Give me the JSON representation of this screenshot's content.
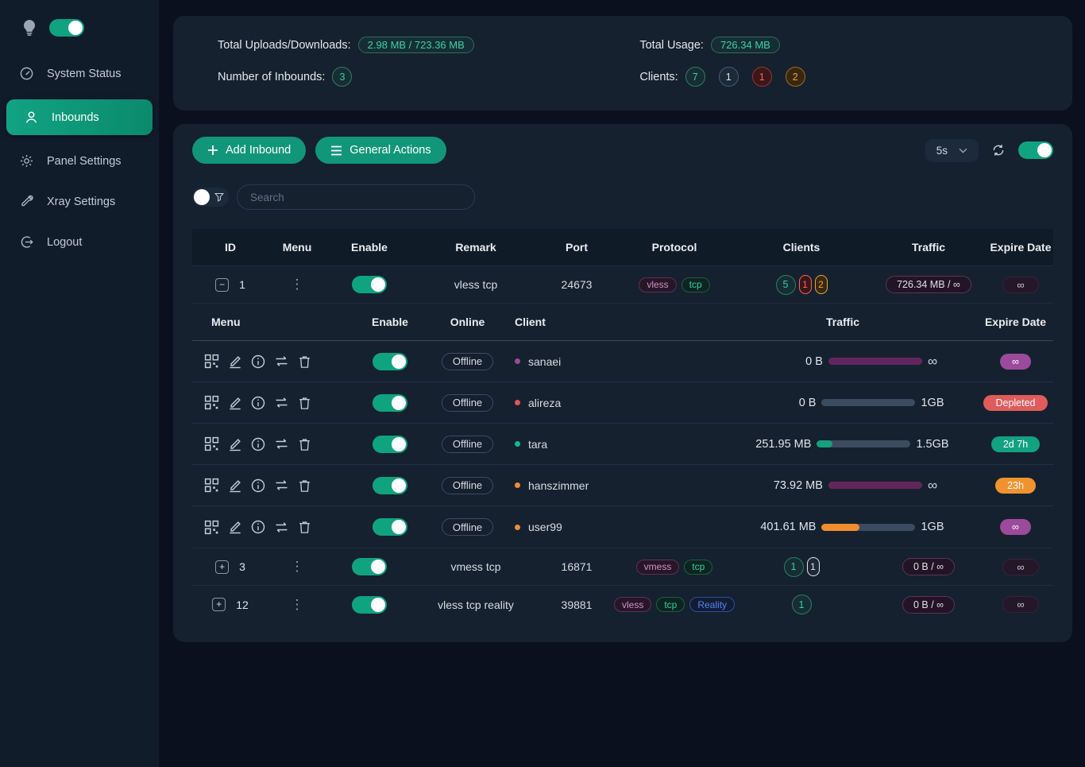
{
  "colors": {
    "accent_green": "#12967a",
    "toggle_on": "#10a37f",
    "badge_teal": "#38d3a4",
    "status_depleted": "#e05b5b",
    "status_warning_orange": "#f0932f",
    "status_ok_teal": "#12a181",
    "status_infinite_purple": "#9c4a9b"
  },
  "sidebar": {
    "items": [
      {
        "label": "System Status"
      },
      {
        "label": "Inbounds"
      },
      {
        "label": "Panel Settings"
      },
      {
        "label": "Xray Settings"
      },
      {
        "label": "Logout"
      }
    ]
  },
  "stats": {
    "uploads_label": "Total Uploads/Downloads:",
    "uploads_value": "2.98 MB / 723.36 MB",
    "inbounds_label": "Number of Inbounds:",
    "inbounds_value": "3",
    "usage_label": "Total Usage:",
    "usage_value": "726.34 MB",
    "clients_label": "Clients:",
    "client_counts": [
      {
        "value": "7",
        "color": "green"
      },
      {
        "value": "1",
        "color": "gray"
      },
      {
        "value": "1",
        "color": "red"
      },
      {
        "value": "2",
        "color": "orange"
      }
    ]
  },
  "toolbar": {
    "add_inbound": "Add Inbound",
    "general_actions": "General Actions",
    "refresh_interval": "5s"
  },
  "search": {
    "placeholder": "Search"
  },
  "inbounds_table": {
    "headers": {
      "id": "ID",
      "menu": "Menu",
      "enable": "Enable",
      "remark": "Remark",
      "port": "Port",
      "protocol": "Protocol",
      "clients": "Clients",
      "traffic": "Traffic",
      "expire": "Expire Date"
    },
    "rows": [
      {
        "expand": "−",
        "id": "1",
        "remark": "vless tcp",
        "port": "24673",
        "protocols": [
          "vless",
          "tcp"
        ],
        "client_counts": [
          {
            "value": "5",
            "color": "green"
          },
          {
            "value": "1",
            "color": "red"
          },
          {
            "value": "2",
            "color": "orange"
          }
        ],
        "traffic": "726.34 MB / ∞",
        "expire": "∞"
      },
      {
        "expand": "+",
        "id": "3",
        "remark": "vmess tcp",
        "port": "16871",
        "protocols": [
          "vmess",
          "tcp"
        ],
        "client_counts": [
          {
            "value": "1",
            "color": "green"
          },
          {
            "value": "1",
            "color": "gray"
          }
        ],
        "traffic": "0 B / ∞",
        "expire": "∞"
      },
      {
        "expand": "+",
        "id": "12",
        "remark": "vless tcp reality",
        "port": "39881",
        "protocols": [
          "vless",
          "tcp",
          "Reality"
        ],
        "client_counts": [
          {
            "value": "1",
            "color": "green"
          }
        ],
        "traffic": "0 B / ∞",
        "expire": "∞"
      }
    ]
  },
  "client_table": {
    "headers": {
      "menu": "Menu",
      "enable": "Enable",
      "online": "Online",
      "client": "Client",
      "traffic": "Traffic",
      "expire": "Expire Date"
    },
    "rows": [
      {
        "status": "Offline",
        "name": "sanaei",
        "dot_color": "#9c4a9b",
        "usage": "0 B",
        "limit": "∞",
        "bar_pct": 100,
        "bar_color": "#63265c",
        "expire_label": "∞",
        "expire_bg": "#9c4a9b"
      },
      {
        "status": "Offline",
        "name": "alireza",
        "dot_color": "#e05555",
        "usage": "0 B",
        "limit": "1GB",
        "bar_pct": 0,
        "bar_color": "#3c4b60",
        "expire_label": "Depleted",
        "expire_bg": "#e05b5b"
      },
      {
        "status": "Offline",
        "name": "tara",
        "dot_color": "#18b791",
        "usage": "251.95 MB",
        "limit": "1.5GB",
        "bar_pct": 17,
        "bar_color": "#16a07c",
        "expire_label": "2d 7h",
        "expire_bg": "#12a181"
      },
      {
        "status": "Offline",
        "name": "hanszimmer",
        "dot_color": "#f08c3a",
        "usage": "73.92 MB",
        "limit": "∞",
        "bar_pct": 100,
        "bar_color": "#63265c",
        "expire_label": "23h",
        "expire_bg": "#f0932f"
      },
      {
        "status": "Offline",
        "name": "user99",
        "dot_color": "#f08c3a",
        "usage": "401.61 MB",
        "limit": "1GB",
        "bar_pct": 40,
        "bar_color": "#ef8d2e",
        "expire_label": "∞",
        "expire_bg": "#9c4a9b"
      }
    ]
  }
}
